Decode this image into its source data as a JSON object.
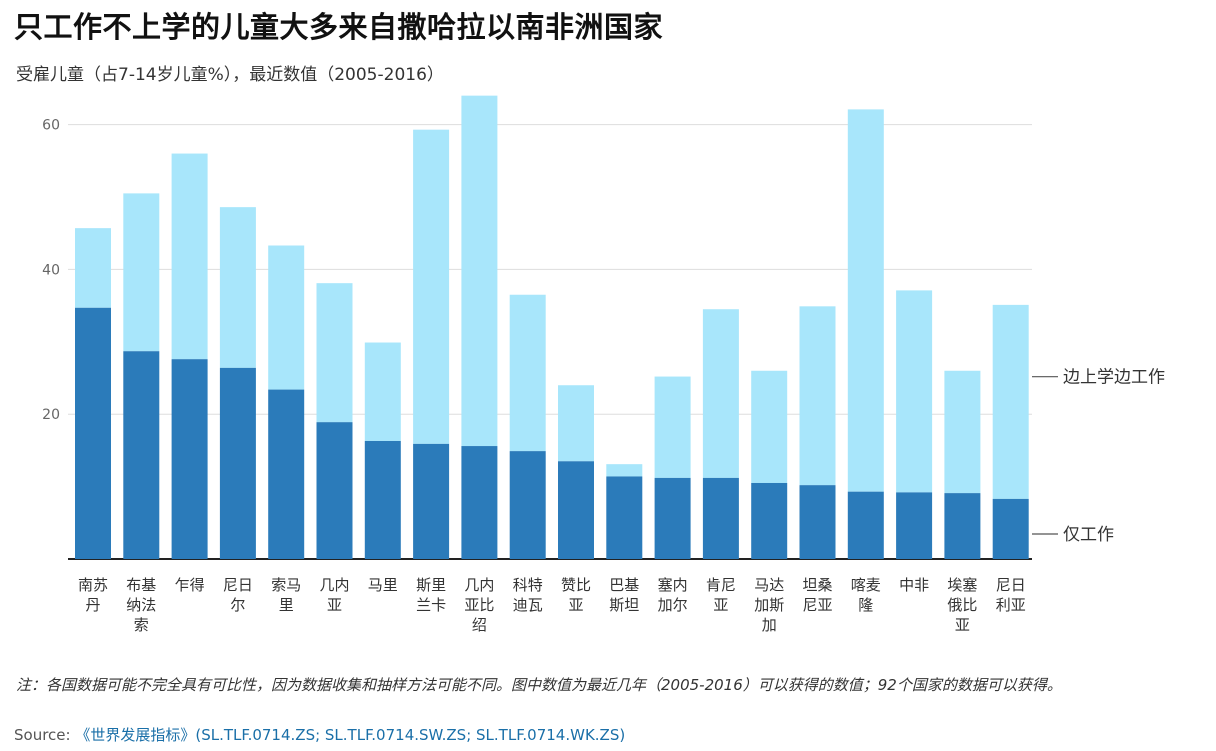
{
  "title": "只工作不上学的儿童大多来自撒哈拉以南非洲国家",
  "subtitle": "受雇儿童（占7-14岁儿童%），最近数值（2005-2016）",
  "note": "注：各国数据可能不完全具有可比性，因为数据收集和抽样方法可能不同。图中数值为最近几年（2005-2016）可以获得的数值；92个国家的数据可以获得。",
  "source_label": "Source: ",
  "source_link": "《世界发展指标》(SL.TLF.0714.ZS; SL.TLF.0714.SW.ZS; SL.TLF.0714.WK.ZS)",
  "colors": {
    "work_only": "#2b7bba",
    "work_study": "#a8e6fb",
    "grid": "#dddddd",
    "axis": "#222222"
  },
  "chart_data": {
    "type": "bar",
    "stacked": true,
    "categories": [
      [
        "南苏",
        "丹"
      ],
      [
        "布基",
        "纳法",
        "索"
      ],
      [
        "乍得"
      ],
      [
        "尼日",
        "尔"
      ],
      [
        "索马",
        "里"
      ],
      [
        "几内",
        "亚"
      ],
      [
        "马里"
      ],
      [
        "斯里",
        "兰卡"
      ],
      [
        "几内",
        "亚比",
        "绍"
      ],
      [
        "科特",
        "迪瓦"
      ],
      [
        "赞比",
        "亚"
      ],
      [
        "巴基",
        "斯坦"
      ],
      [
        "塞内",
        "加尔"
      ],
      [
        "肯尼",
        "亚"
      ],
      [
        "马达",
        "加斯",
        "加"
      ],
      [
        "坦桑",
        "尼亚"
      ],
      [
        "喀麦",
        "隆"
      ],
      [
        "中非"
      ],
      [
        "埃塞",
        "俄比",
        "亚"
      ],
      [
        "尼日",
        "利亚"
      ]
    ],
    "series": [
      {
        "name": "仅工作",
        "values": [
          34.7,
          28.7,
          27.6,
          26.4,
          23.4,
          18.9,
          16.3,
          15.9,
          15.6,
          14.9,
          13.5,
          11.4,
          11.2,
          11.2,
          10.5,
          10.2,
          9.3,
          9.2,
          9.1,
          8.3
        ]
      },
      {
        "name": "边上学边工作",
        "values": [
          11.0,
          21.8,
          28.4,
          22.2,
          19.9,
          19.2,
          13.6,
          43.4,
          48.4,
          21.6,
          10.5,
          1.7,
          14.0,
          23.3,
          15.5,
          24.7,
          52.8,
          27.9,
          16.9,
          26.8
        ]
      }
    ],
    "yticks": [
      20,
      40,
      60
    ],
    "ylim": [
      0,
      64
    ],
    "grid": true
  }
}
